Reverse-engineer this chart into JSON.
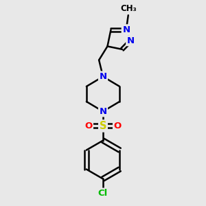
{
  "bg_color": "#e8e8e8",
  "bond_color": "#000000",
  "bond_width": 1.8,
  "atom_colors": {
    "N": "#0000ee",
    "O": "#ff0000",
    "S": "#cccc00",
    "Cl": "#00bb00",
    "C": "#000000"
  },
  "figsize": [
    3.0,
    3.0
  ],
  "dpi": 100
}
